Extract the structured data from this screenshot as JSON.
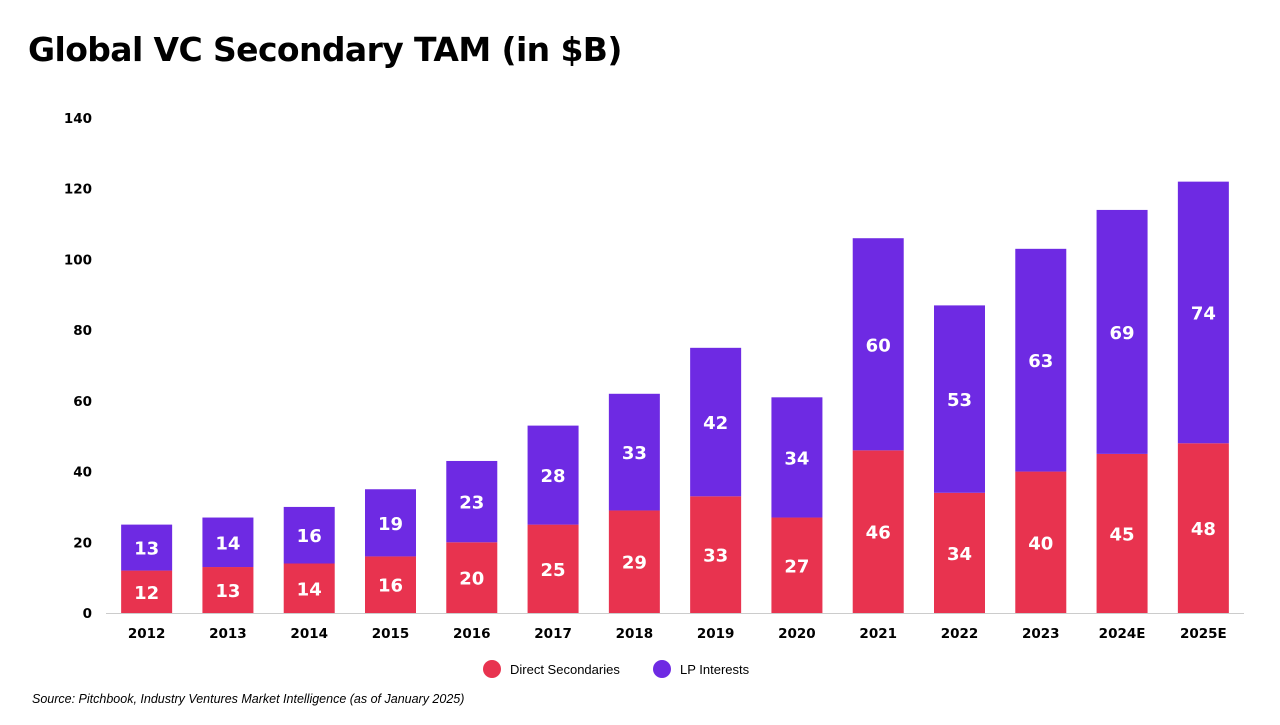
{
  "title": "Global VC Secondary TAM (in $B)",
  "source": "Source: Pitchbook, Industry Ventures Market Intelligence (as of January 2025)",
  "chart_data": {
    "type": "bar",
    "stacked": true,
    "title": "Global VC Secondary TAM (in $B)",
    "categories": [
      "2012",
      "2013",
      "2014",
      "2015",
      "2016",
      "2017",
      "2018",
      "2019",
      "2020",
      "2021",
      "2022",
      "2023",
      "2024E",
      "2025E"
    ],
    "series": [
      {
        "name": "Direct Secondaries",
        "color": "#E8334F",
        "values": [
          12,
          13,
          14,
          16,
          20,
          25,
          29,
          33,
          27,
          46,
          34,
          40,
          45,
          48
        ]
      },
      {
        "name": "LP Interests",
        "color": "#6E2AE3",
        "values": [
          13,
          14,
          16,
          19,
          23,
          28,
          33,
          42,
          34,
          60,
          53,
          63,
          69,
          74
        ]
      }
    ],
    "ylim": [
      0,
      140
    ],
    "yticks": [
      0,
      20,
      40,
      60,
      80,
      100,
      120,
      140
    ],
    "grid": false,
    "legend_position": "bottom-center",
    "xlabel": "",
    "ylabel": ""
  }
}
